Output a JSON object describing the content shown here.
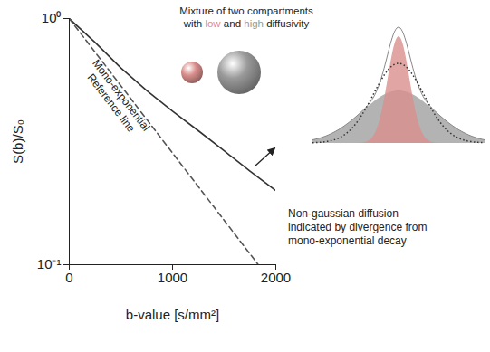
{
  "chart_data": {
    "type": "line",
    "xlabel": "b-value [s/mm²]",
    "ylabel": "S(b)/S₀",
    "xlim": [
      0,
      2000
    ],
    "xticks": [
      0,
      1000,
      2000
    ],
    "ylim": [
      0.1,
      1
    ],
    "yticks": [
      {
        "value": 0.1,
        "label": "10⁻¹"
      },
      {
        "value": 1,
        "label": "10⁰"
      }
    ],
    "log": "y",
    "grid": false,
    "series": [
      {
        "x": [
          0,
          250,
          500,
          750,
          1000,
          1250,
          1500,
          1750,
          2000
        ],
        "values": [
          1,
          0.8,
          0.63,
          0.51,
          0.42,
          0.35,
          0.29,
          0.24,
          0.2
        ],
        "color": "#333333",
        "line_style": "solid"
      },
      {
        "name": "Mono-exponential Reference line",
        "x": [
          0,
          1830
        ],
        "values": [
          1,
          0.1
        ],
        "color": "#555555",
        "line_style": "dashed"
      }
    ],
    "annotations": [
      "Mixture of two compartments with low and high diffusivity",
      "Non-gaussian diffusion indicated by divergence from mono-exponential decay"
    ],
    "compartments": [
      {
        "name": "low",
        "color": "#d98f8c"
      },
      {
        "name": "high",
        "color": "#9a9a9a"
      }
    ]
  }
}
